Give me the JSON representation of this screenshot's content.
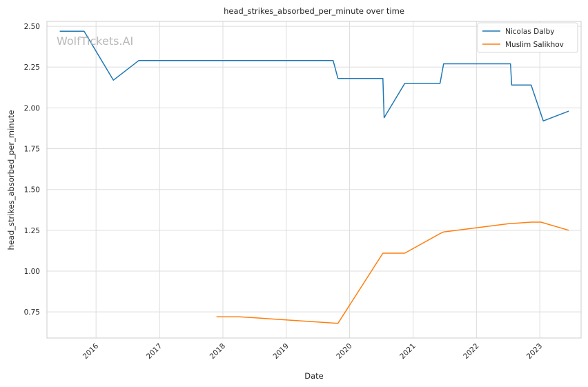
{
  "chart_data": {
    "type": "line",
    "title": "head_strikes_absorbed_per_minute over time",
    "xlabel": "Date",
    "ylabel": "head_strikes_absorbed_per_minute",
    "watermark": "WolfTickets.AI",
    "x_ticks": [
      "2016",
      "2017",
      "2018",
      "2019",
      "2020",
      "2021",
      "2022",
      "2023"
    ],
    "y_ticks": [
      "0.75",
      "1.00",
      "1.25",
      "1.50",
      "1.75",
      "2.00",
      "2.25",
      "2.50"
    ],
    "xlim": [
      "2015-03-24",
      "2023-08-27"
    ],
    "ylim": [
      0.59,
      2.53
    ],
    "grid": true,
    "legend_position": "top-right",
    "series": [
      {
        "name": "Nicolas Dalby",
        "color": "#1f77b4",
        "points": [
          [
            "2015-06-06",
            2.47
          ],
          [
            "2015-10-24",
            2.47
          ],
          [
            "2016-04-10",
            2.17
          ],
          [
            "2016-09-03",
            2.29
          ],
          [
            "2019-09-28",
            2.29
          ],
          [
            "2019-10-26",
            2.18
          ],
          [
            "2020-07-11",
            2.18
          ],
          [
            "2020-07-18",
            1.94
          ],
          [
            "2020-11-14",
            2.15
          ],
          [
            "2021-06-05",
            2.15
          ],
          [
            "2021-06-26",
            2.27
          ],
          [
            "2022-07-16",
            2.27
          ],
          [
            "2022-07-23",
            2.14
          ],
          [
            "2022-11-12",
            2.14
          ],
          [
            "2023-01-21",
            1.92
          ],
          [
            "2023-06-17",
            1.98
          ]
        ]
      },
      {
        "name": "Muslim Salikhov",
        "color": "#ff7f0e",
        "points": [
          [
            "2017-11-25",
            0.72
          ],
          [
            "2018-04-07",
            0.72
          ],
          [
            "2019-10-26",
            0.68
          ],
          [
            "2020-07-11",
            1.11
          ],
          [
            "2020-11-14",
            1.11
          ],
          [
            "2021-06-05",
            1.23
          ],
          [
            "2021-06-26",
            1.24
          ],
          [
            "2022-07-02",
            1.29
          ],
          [
            "2022-11-12",
            1.3
          ],
          [
            "2023-01-07",
            1.3
          ],
          [
            "2023-06-17",
            1.25
          ]
        ]
      }
    ]
  }
}
